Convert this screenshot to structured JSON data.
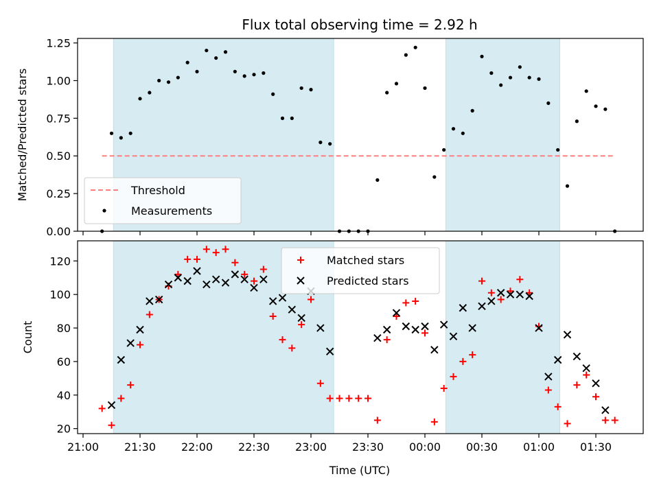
{
  "chart_data": {
    "type": "scatter",
    "title": "Flux total observing time = 2.92 h",
    "xlabel": "Time (UTC)",
    "x_ticks": [
      "21:00",
      "21:30",
      "22:00",
      "22:30",
      "23:00",
      "23:30",
      "00:00",
      "00:30",
      "01:00",
      "01:30"
    ],
    "x": [
      "21:10",
      "21:15",
      "21:20",
      "21:25",
      "21:30",
      "21:35",
      "21:40",
      "21:45",
      "21:50",
      "21:55",
      "22:00",
      "22:05",
      "22:10",
      "22:15",
      "22:20",
      "22:25",
      "22:30",
      "22:35",
      "22:40",
      "22:45",
      "22:50",
      "22:55",
      "23:00",
      "23:05",
      "23:10",
      "23:15",
      "23:20",
      "23:25",
      "23:30",
      "23:35",
      "23:40",
      "23:45",
      "23:50",
      "23:55",
      "00:00",
      "00:05",
      "00:10",
      "00:15",
      "00:20",
      "00:25",
      "00:30",
      "00:35",
      "00:40",
      "00:45",
      "00:50",
      "00:55",
      "01:00",
      "01:05",
      "01:10",
      "01:15",
      "01:20",
      "01:25",
      "01:30",
      "01:35",
      "01:40"
    ],
    "shaded_intervals": [
      [
        "21:16",
        "23:12"
      ],
      [
        "00:11",
        "01:11"
      ]
    ],
    "panels": [
      {
        "ylabel": "Matched/Predicted stars",
        "ylim": [
          0,
          1.28
        ],
        "y_ticks": [
          "0.00",
          "0.25",
          "0.50",
          "0.75",
          "1.00",
          "1.25"
        ],
        "threshold": {
          "name": "Threshold",
          "value": 0.5,
          "color": "#ff7f7f"
        },
        "series": [
          {
            "name": "Measurements",
            "marker": "dot",
            "color": "#000000",
            "values": [
              0.0,
              0.65,
              0.62,
              0.65,
              0.88,
              0.92,
              1.0,
              0.99,
              1.02,
              1.12,
              1.06,
              1.2,
              1.15,
              1.19,
              1.06,
              1.03,
              1.04,
              1.05,
              0.91,
              0.75,
              0.75,
              0.95,
              0.94,
              0.59,
              0.58,
              0.0,
              0.0,
              0.0,
              0.0,
              0.34,
              0.92,
              0.98,
              1.17,
              1.22,
              0.95,
              0.36,
              0.54,
              0.68,
              0.65,
              0.8,
              1.16,
              1.05,
              0.97,
              1.02,
              1.09,
              1.02,
              1.01,
              0.85,
              0.54,
              0.3,
              0.73,
              0.93,
              0.83,
              0.81,
              0.0
            ]
          }
        ],
        "legend_position": "lower-left"
      },
      {
        "ylabel": "Count",
        "ylim": [
          17,
          132
        ],
        "y_ticks": [
          "20",
          "40",
          "60",
          "80",
          "100",
          "120"
        ],
        "series": [
          {
            "name": "Matched stars",
            "marker": "plus",
            "color": "#ff0000",
            "values": [
              32,
              22,
              38,
              46,
              70,
              88,
              97,
              105,
              112,
              121,
              121,
              127,
              125,
              127,
              119,
              112,
              108,
              115,
              87,
              73,
              68,
              82,
              97,
              47,
              38,
              38,
              38,
              38,
              38,
              25,
              73,
              87,
              95,
              96,
              77,
              24,
              44,
              51,
              60,
              64,
              108,
              101,
              97,
              102,
              109,
              101,
              81,
              43,
              33,
              23,
              46,
              52,
              39,
              25,
              25
            ]
          },
          {
            "name": "Predicted stars",
            "marker": "x",
            "color": "#000000",
            "values": [
              null,
              34,
              61,
              71,
              79,
              96,
              97,
              106,
              110,
              108,
              114,
              106,
              109,
              107,
              112,
              109,
              104,
              109,
              96,
              98,
              91,
              86,
              102,
              80,
              66,
              null,
              null,
              null,
              null,
              74,
              79,
              89,
              81,
              79,
              81,
              67,
              82,
              75,
              92,
              80,
              93,
              96,
              101,
              100,
              100,
              99,
              80,
              51,
              61,
              76,
              63,
              56,
              47,
              31,
              null
            ]
          }
        ],
        "legend_position": "upper-center"
      }
    ]
  }
}
